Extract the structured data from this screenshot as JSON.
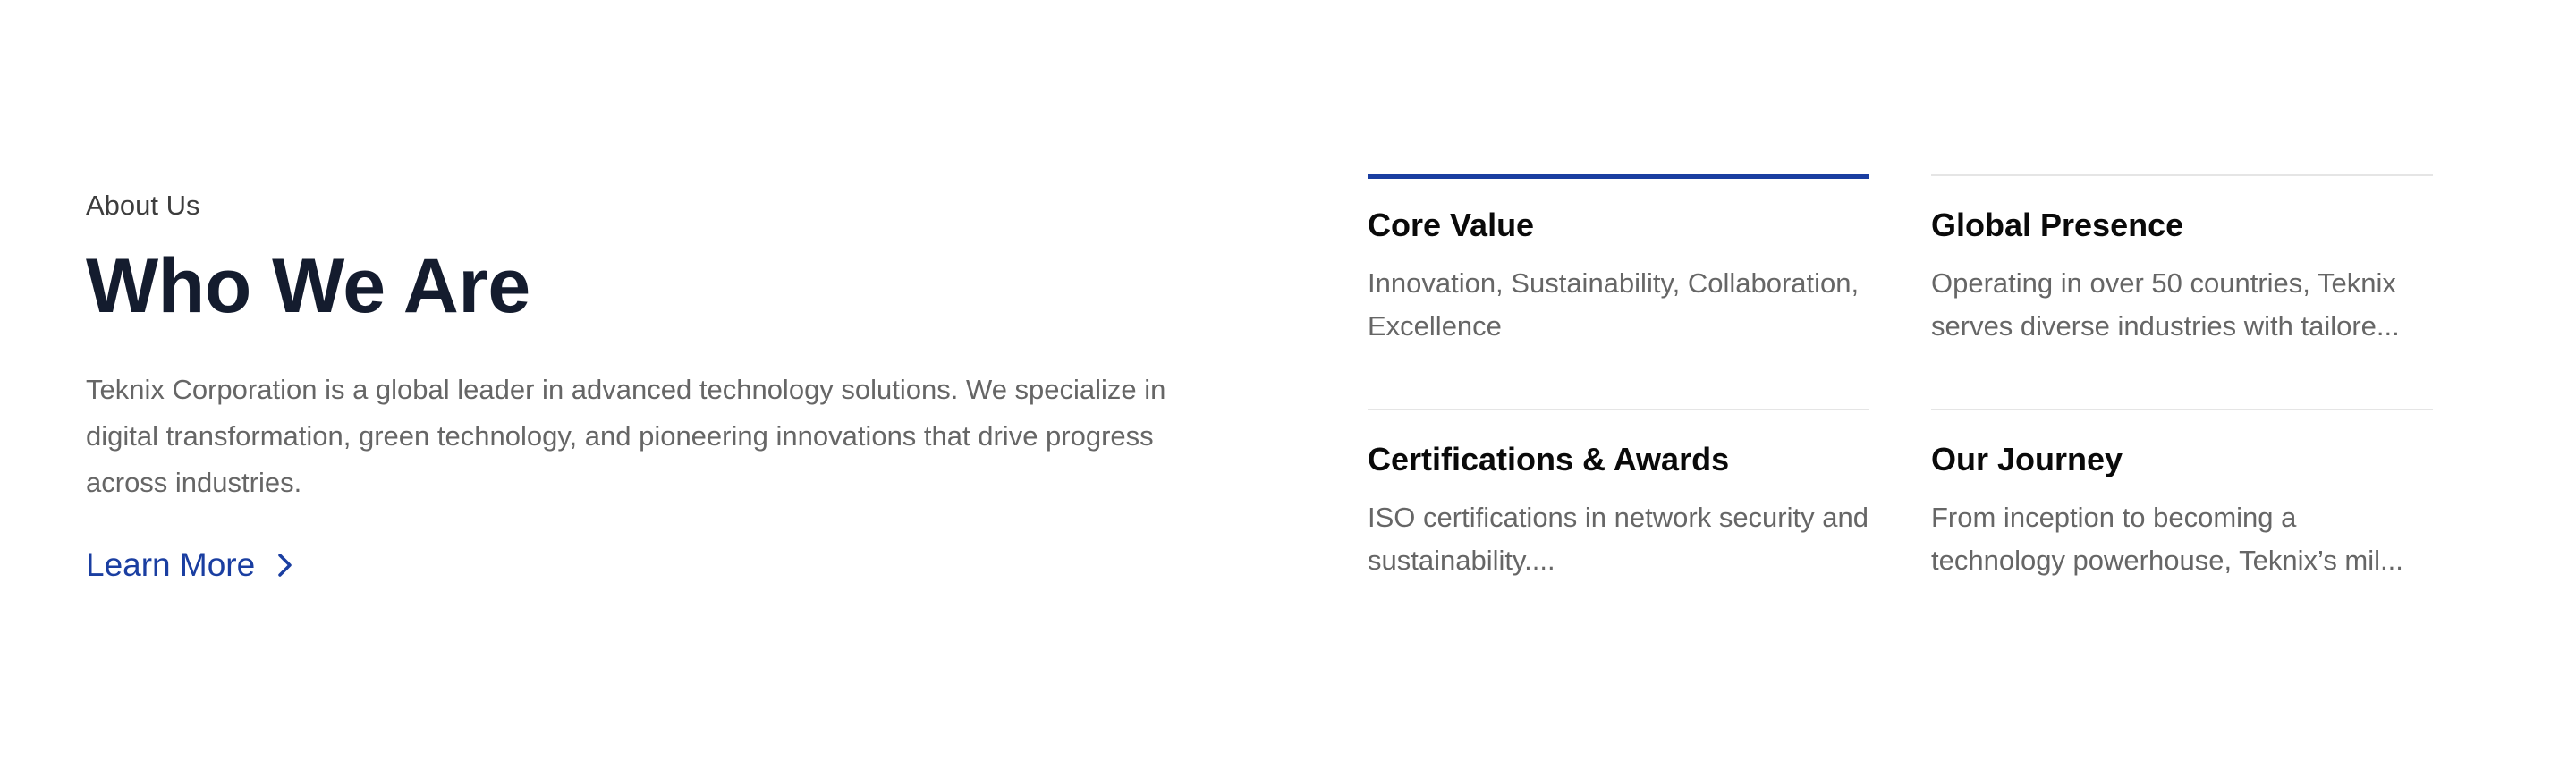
{
  "about": {
    "eyebrow": "About Us",
    "headline": "Who We Are",
    "description": "Teknix Corporation is a global leader in advanced technology solutions. We specialize in digital transformation, green technology, and pioneering innovations that drive progress across industries.",
    "cta_label": "Learn More",
    "cta_icon": "chevron-right-icon"
  },
  "cards": [
    {
      "title": "Core Value",
      "text": "Innovation, Sustainability, Collaboration, Excellence",
      "active": true
    },
    {
      "title": "Global Presence",
      "text": "Operating in over 50 countries, Teknix serves diverse industries with tailore...",
      "active": false
    },
    {
      "title": "Certifications & Awards",
      "text": "ISO certifications in network security and sustainability....",
      "active": false
    },
    {
      "title": "Our Journey",
      "text": "From inception to becoming a technology powerhouse, Teknix’s mil...",
      "active": false
    }
  ],
  "colors": {
    "accent": "#1a3ea1",
    "heading": "#141c2e",
    "body_text": "#666666",
    "divider": "#e5e5e5"
  }
}
